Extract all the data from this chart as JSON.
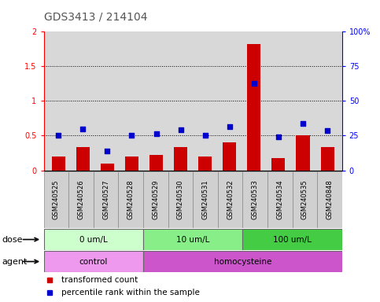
{
  "title": "GDS3413 / 214104",
  "samples": [
    "GSM240525",
    "GSM240526",
    "GSM240527",
    "GSM240528",
    "GSM240529",
    "GSM240530",
    "GSM240531",
    "GSM240532",
    "GSM240533",
    "GSM240534",
    "GSM240535",
    "GSM240848"
  ],
  "bar_values": [
    0.2,
    0.33,
    0.1,
    0.2,
    0.22,
    0.33,
    0.2,
    0.4,
    1.82,
    0.18,
    0.5,
    0.33
  ],
  "dot_values_pct": [
    25,
    30,
    14,
    25,
    26.5,
    29,
    25,
    31.5,
    62.5,
    24,
    34,
    28.5
  ],
  "bar_color": "#cc0000",
  "dot_color": "#0000cc",
  "ylim_left": [
    0,
    2
  ],
  "ylim_right": [
    0,
    100
  ],
  "yticks_left": [
    0,
    0.5,
    1.0,
    1.5,
    2.0
  ],
  "yticklabels_left": [
    "0",
    "0.5",
    "1",
    "1.5",
    "2"
  ],
  "yticks_right": [
    0,
    25,
    50,
    75,
    100
  ],
  "yticklabels_right": [
    "0",
    "25",
    "50",
    "75",
    "100%"
  ],
  "hlines": [
    0.5,
    1.0,
    1.5
  ],
  "dose_groups": [
    {
      "label": "0 um/L",
      "start": 0,
      "end": 4,
      "color": "#ccffcc"
    },
    {
      "label": "10 um/L",
      "start": 4,
      "end": 8,
      "color": "#88ee88"
    },
    {
      "label": "100 um/L",
      "start": 8,
      "end": 12,
      "color": "#44cc44"
    }
  ],
  "agent_groups": [
    {
      "label": "control",
      "start": 0,
      "end": 4,
      "color": "#ee99ee"
    },
    {
      "label": "homocysteine",
      "start": 4,
      "end": 12,
      "color": "#cc55cc"
    }
  ],
  "dose_label": "dose",
  "agent_label": "agent",
  "legend_bar": "transformed count",
  "legend_dot": "percentile rank within the sample",
  "plot_bg": "#d8d8d8",
  "sample_bg": "#d0d0d0",
  "title_color": "#555555",
  "title_fontsize": 10
}
